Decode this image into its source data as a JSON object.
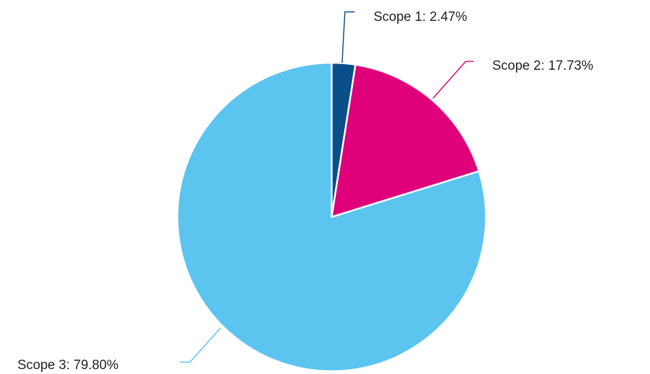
{
  "chart_data": {
    "type": "pie",
    "title": "",
    "slices": [
      {
        "label": "Scope 1: 2.47%",
        "name": "Scope 1",
        "value": 2.47,
        "color": "#0b4f8a"
      },
      {
        "label": "Scope 2: 17.73%",
        "name": "Scope 2",
        "value": 17.73,
        "color": "#e0007a"
      },
      {
        "label": "Scope 3: 79.80%",
        "name": "Scope 3",
        "value": 79.8,
        "color": "#5bc4ef"
      }
    ],
    "start_angle": "12 o'clock",
    "direction": "clockwise",
    "labels": "outside with leader lines",
    "legend": "none"
  }
}
